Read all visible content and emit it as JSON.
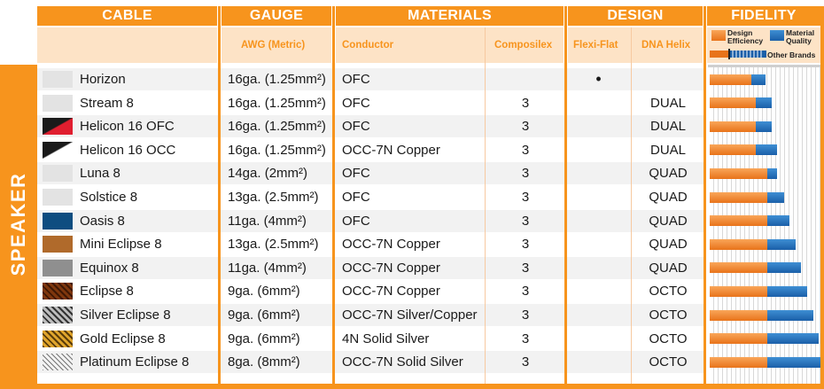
{
  "headers": {
    "cable": "CABLE",
    "gauge": "GAUGE",
    "materials": "MATERIALS",
    "design": "DESIGN",
    "fidelity": "FIDELITY"
  },
  "subheaders": {
    "awg": "AWG (Metric)",
    "conductor": "Conductor",
    "composilex": "Composilex",
    "flexi_flat": "Flexi-Flat",
    "dna_helix": "DNA Helix"
  },
  "legend": {
    "design_efficiency": "Design Efficiency",
    "material_quality": "Material Quality",
    "other_brands": "Other Brands"
  },
  "side_label": "SPEAKER",
  "colors": {
    "accent_orange": "#f7941d",
    "subheader_bg": "#fde3c6",
    "bar_orange": "#e8731a",
    "bar_blue": "#1a5fa8"
  },
  "rows": [
    {
      "name": "Horizon",
      "gauge": "16ga. (1.25mm²)",
      "conductor": "OFC",
      "composilex": "",
      "flexi_flat": "•",
      "dna_helix": "",
      "swatch": "swatch-light-gray",
      "design_efficiency": 0.37,
      "material_quality": 0.13
    },
    {
      "name": "Stream 8",
      "gauge": "16ga. (1.25mm²)",
      "conductor": "OFC",
      "composilex": "3",
      "flexi_flat": "",
      "dna_helix": "DUAL",
      "swatch": "swatch-light-gray",
      "design_efficiency": 0.41,
      "material_quality": 0.14
    },
    {
      "name": "Helicon 16 OFC",
      "gauge": "16ga. (1.25mm²)",
      "conductor": "OFC",
      "composilex": "3",
      "flexi_flat": "",
      "dna_helix": "DUAL",
      "swatch": "swatch-red-black-diagonal",
      "design_efficiency": 0.41,
      "material_quality": 0.14
    },
    {
      "name": "Helicon 16 OCC",
      "gauge": "16ga. (1.25mm²)",
      "conductor": "OCC-7N Copper",
      "composilex": "3",
      "flexi_flat": "",
      "dna_helix": "DUAL",
      "swatch": "swatch-white-black-diagonal",
      "design_efficiency": 0.41,
      "material_quality": 0.19
    },
    {
      "name": "Luna 8",
      "gauge": "14ga. (2mm²)",
      "conductor": "OFC",
      "composilex": "3",
      "flexi_flat": "",
      "dna_helix": "QUAD",
      "swatch": "swatch-light-gray",
      "design_efficiency": 0.51,
      "material_quality": 0.09
    },
    {
      "name": "Solstice 8",
      "gauge": "13ga. (2.5mm²)",
      "conductor": "OFC",
      "composilex": "3",
      "flexi_flat": "",
      "dna_helix": "QUAD",
      "swatch": "swatch-light-gray",
      "design_efficiency": 0.51,
      "material_quality": 0.15
    },
    {
      "name": "Oasis 8",
      "gauge": "11ga. (4mm²)",
      "conductor": "OFC",
      "composilex": "3",
      "flexi_flat": "",
      "dna_helix": "QUAD",
      "swatch": "swatch-dark-blue",
      "design_efficiency": 0.51,
      "material_quality": 0.2
    },
    {
      "name": "Mini Eclipse 8",
      "gauge": "13ga. (2.5mm²)",
      "conductor": "OCC-7N Copper",
      "composilex": "3",
      "flexi_flat": "",
      "dna_helix": "QUAD",
      "swatch": "swatch-copper",
      "design_efficiency": 0.51,
      "material_quality": 0.25
    },
    {
      "name": "Equinox 8",
      "gauge": "11ga. (4mm²)",
      "conductor": "OCC-7N Copper",
      "composilex": "3",
      "flexi_flat": "",
      "dna_helix": "QUAD",
      "swatch": "swatch-gray",
      "design_efficiency": 0.51,
      "material_quality": 0.3
    },
    {
      "name": "Eclipse 8",
      "gauge": "9ga. (6mm²)",
      "conductor": "OCC-7N Copper",
      "composilex": "3",
      "flexi_flat": "",
      "dna_helix": "OCTO",
      "swatch": "swatch-copper-weave",
      "design_efficiency": 0.51,
      "material_quality": 0.36
    },
    {
      "name": "Silver Eclipse 8",
      "gauge": "9ga. (6mm²)",
      "conductor": "OCC-7N Silver/Copper",
      "composilex": "3",
      "flexi_flat": "",
      "dna_helix": "OCTO",
      "swatch": "swatch-silver-weave",
      "design_efficiency": 0.51,
      "material_quality": 0.41
    },
    {
      "name": "Gold Eclipse 8",
      "gauge": "9ga. (6mm²)",
      "conductor": "4N Solid Silver",
      "composilex": "3",
      "flexi_flat": "",
      "dna_helix": "OCTO",
      "swatch": "swatch-gold-weave",
      "design_efficiency": 0.51,
      "material_quality": 0.46
    },
    {
      "name": "Platinum Eclipse 8",
      "gauge": "8ga. (8mm²)",
      "conductor": "OCC-7N Solid Silver",
      "composilex": "3",
      "flexi_flat": "",
      "dna_helix": "OCTO",
      "swatch": "swatch-white-weave",
      "design_efficiency": 0.51,
      "material_quality": 0.49
    }
  ]
}
